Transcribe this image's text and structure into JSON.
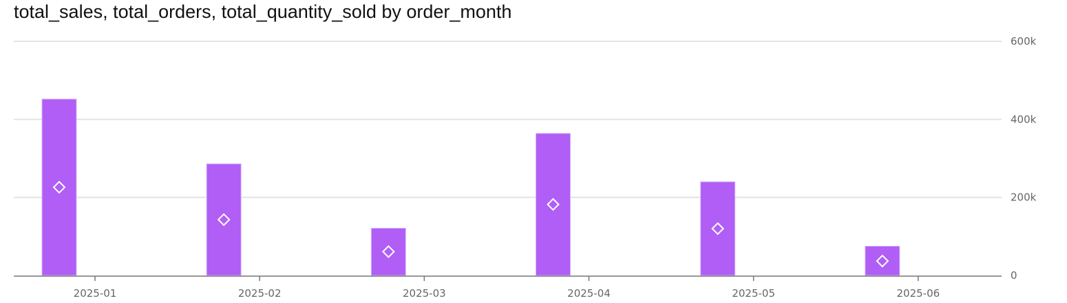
{
  "chart_data": {
    "type": "bar",
    "title": "total_sales, total_orders, total_quantity_sold by order_month",
    "categories": [
      "2025-01",
      "2025-02",
      "2025-03",
      "2025-04",
      "2025-05",
      "2025-06"
    ],
    "ylim": [
      0,
      600000
    ],
    "y_ticks": [
      0,
      200000,
      400000,
      600000
    ],
    "y_tick_labels": [
      "0",
      "200k",
      "400k",
      "600k"
    ],
    "y_axis_side": "right",
    "grid": true,
    "series": [
      {
        "name": "total_sales",
        "mark": "bar",
        "color": "#b05ef5",
        "values": [
          452000,
          286000,
          121000,
          364000,
          240000,
          75000
        ]
      },
      {
        "name": "total_quantity_sold",
        "mark": "diamond",
        "color": "#ffffff",
        "values": [
          226000,
          143000,
          61000,
          182000,
          120000,
          37000
        ]
      }
    ]
  }
}
